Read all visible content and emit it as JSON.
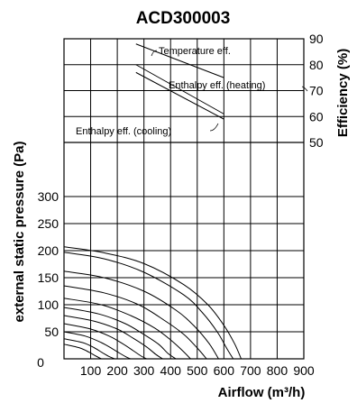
{
  "chart_data": {
    "type": "line",
    "title": "ACD300003",
    "xlabel": "Airflow (m³/h)",
    "ylabel_left": "external static pressure (Pa)",
    "ylabel_right": "Efficiency (%)",
    "xlim": [
      0,
      900
    ],
    "x_ticks": [
      "100",
      "200",
      "300",
      "400",
      "500",
      "600",
      "700",
      "800",
      "900"
    ],
    "x_zero_label": "0",
    "pressure_ticks": [
      "50",
      "100",
      "150",
      "200",
      "250",
      "300"
    ],
    "efficiency_ticks": [
      "50",
      "60",
      "70",
      "80",
      "90"
    ],
    "pressure_range": [
      0,
      340
    ],
    "efficiency_range": [
      50,
      90
    ],
    "grid": true,
    "efficiency_series": [
      {
        "name": "Temperature eff.",
        "x": [
          270,
          600
        ],
        "y": [
          88,
          75
        ]
      },
      {
        "name": "Enthalpy eff. (heating)",
        "x": [
          270,
          600
        ],
        "y": [
          80,
          61
        ]
      },
      {
        "name": "Enthalpy eff. (cooling)",
        "x": [
          270,
          600
        ],
        "y": [
          77,
          59
        ]
      }
    ],
    "pressure_curves": [
      {
        "x": [
          0,
          150,
          300,
          450,
          540,
          600,
          640,
          665
        ],
        "y": [
          207,
          196,
          176,
          137,
          100,
          62,
          28,
          0
        ]
      },
      {
        "x": [
          0,
          150,
          300,
          450,
          520,
          575,
          610,
          635
        ],
        "y": [
          197,
          185,
          160,
          118,
          85,
          50,
          20,
          0
        ]
      },
      {
        "x": [
          0,
          150,
          300,
          420,
          490,
          545,
          580
        ],
        "y": [
          162,
          150,
          125,
          90,
          60,
          28,
          0
        ]
      },
      {
        "x": [
          0,
          150,
          280,
          380,
          450,
          500,
          535
        ],
        "y": [
          135,
          122,
          100,
          70,
          45,
          20,
          0
        ]
      },
      {
        "x": [
          0,
          140,
          250,
          340,
          400,
          445,
          475
        ],
        "y": [
          112,
          100,
          80,
          57,
          35,
          15,
          0
        ]
      },
      {
        "x": [
          0,
          130,
          230,
          300,
          355,
          390,
          420
        ],
        "y": [
          95,
          83,
          65,
          45,
          27,
          10,
          0
        ]
      },
      {
        "x": [
          0,
          110,
          200,
          260,
          310,
          345,
          370
        ],
        "y": [
          80,
          70,
          55,
          38,
          22,
          8,
          0
        ]
      },
      {
        "x": [
          0,
          100,
          170,
          220,
          260,
          290,
          310
        ],
        "y": [
          65,
          55,
          42,
          28,
          15,
          5,
          0
        ]
      },
      {
        "x": [
          0,
          80,
          140,
          180,
          210,
          235,
          250
        ],
        "y": [
          50,
          42,
          30,
          19,
          10,
          3,
          0
        ]
      },
      {
        "x": [
          0,
          70,
          115,
          145,
          170,
          190
        ],
        "y": [
          37,
          30,
          20,
          11,
          4,
          0
        ]
      },
      {
        "x": [
          0,
          60,
          95,
          120,
          140
        ],
        "y": [
          27,
          20,
          12,
          5,
          0
        ]
      }
    ]
  }
}
